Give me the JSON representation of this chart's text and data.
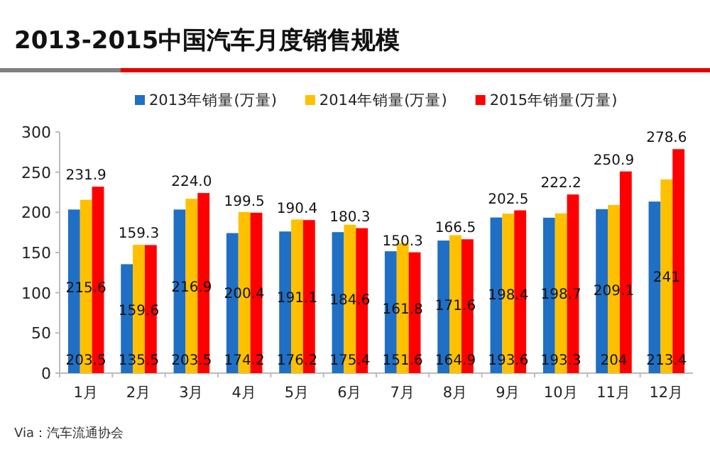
{
  "chart_data": {
    "type": "bar",
    "title": "2013-2015中国汽车月度销售规模",
    "categories": [
      "1月",
      "2月",
      "3月",
      "4月",
      "5月",
      "6月",
      "7月",
      "8月",
      "9月",
      "10月",
      "11月",
      "12月"
    ],
    "series": [
      {
        "name": "2013年销量(万量)",
        "color": "#1f6fc5",
        "values": [
          203.5,
          135.5,
          203.5,
          174.2,
          176.2,
          175.4,
          151.6,
          164.9,
          193.6,
          193.3,
          204,
          213.4
        ],
        "value_labels": [
          "203.5",
          "135.5",
          "203.5",
          "174.2",
          "176.2",
          "175.4",
          "151.6",
          "164.9",
          "193.6",
          "193.3",
          "204",
          "213.4"
        ]
      },
      {
        "name": "2014年销量(万量)",
        "color": "#ffc000",
        "values": [
          215.6,
          159.6,
          216.9,
          200.4,
          191.1,
          184.6,
          161.8,
          171.6,
          198.4,
          198.7,
          209.1,
          241
        ],
        "value_labels": [
          "215.6",
          "159.6",
          "216.9",
          "200.4",
          "191.1",
          "184.6",
          "161.8",
          "171.6",
          "198.4",
          "198.7",
          "209.1",
          "241"
        ]
      },
      {
        "name": "2015年销量(万量)",
        "color": "#ff0000",
        "values": [
          231.9,
          159.3,
          224.0,
          199.5,
          190.4,
          180.3,
          150.3,
          166.5,
          202.5,
          222.2,
          250.9,
          278.6
        ],
        "value_labels": [
          "231.9",
          "159.3",
          "224.0",
          "199.5",
          "190.4",
          "180.3",
          "150.3",
          "166.5",
          "202.5",
          "222.2",
          "250.9",
          "278.6"
        ]
      }
    ],
    "ylim": [
      0,
      300
    ],
    "yticks": [
      0,
      50,
      100,
      150,
      200,
      250,
      300
    ],
    "grid": false,
    "legend": "top",
    "annotations": [
      "Via：汽车流通协会"
    ]
  }
}
